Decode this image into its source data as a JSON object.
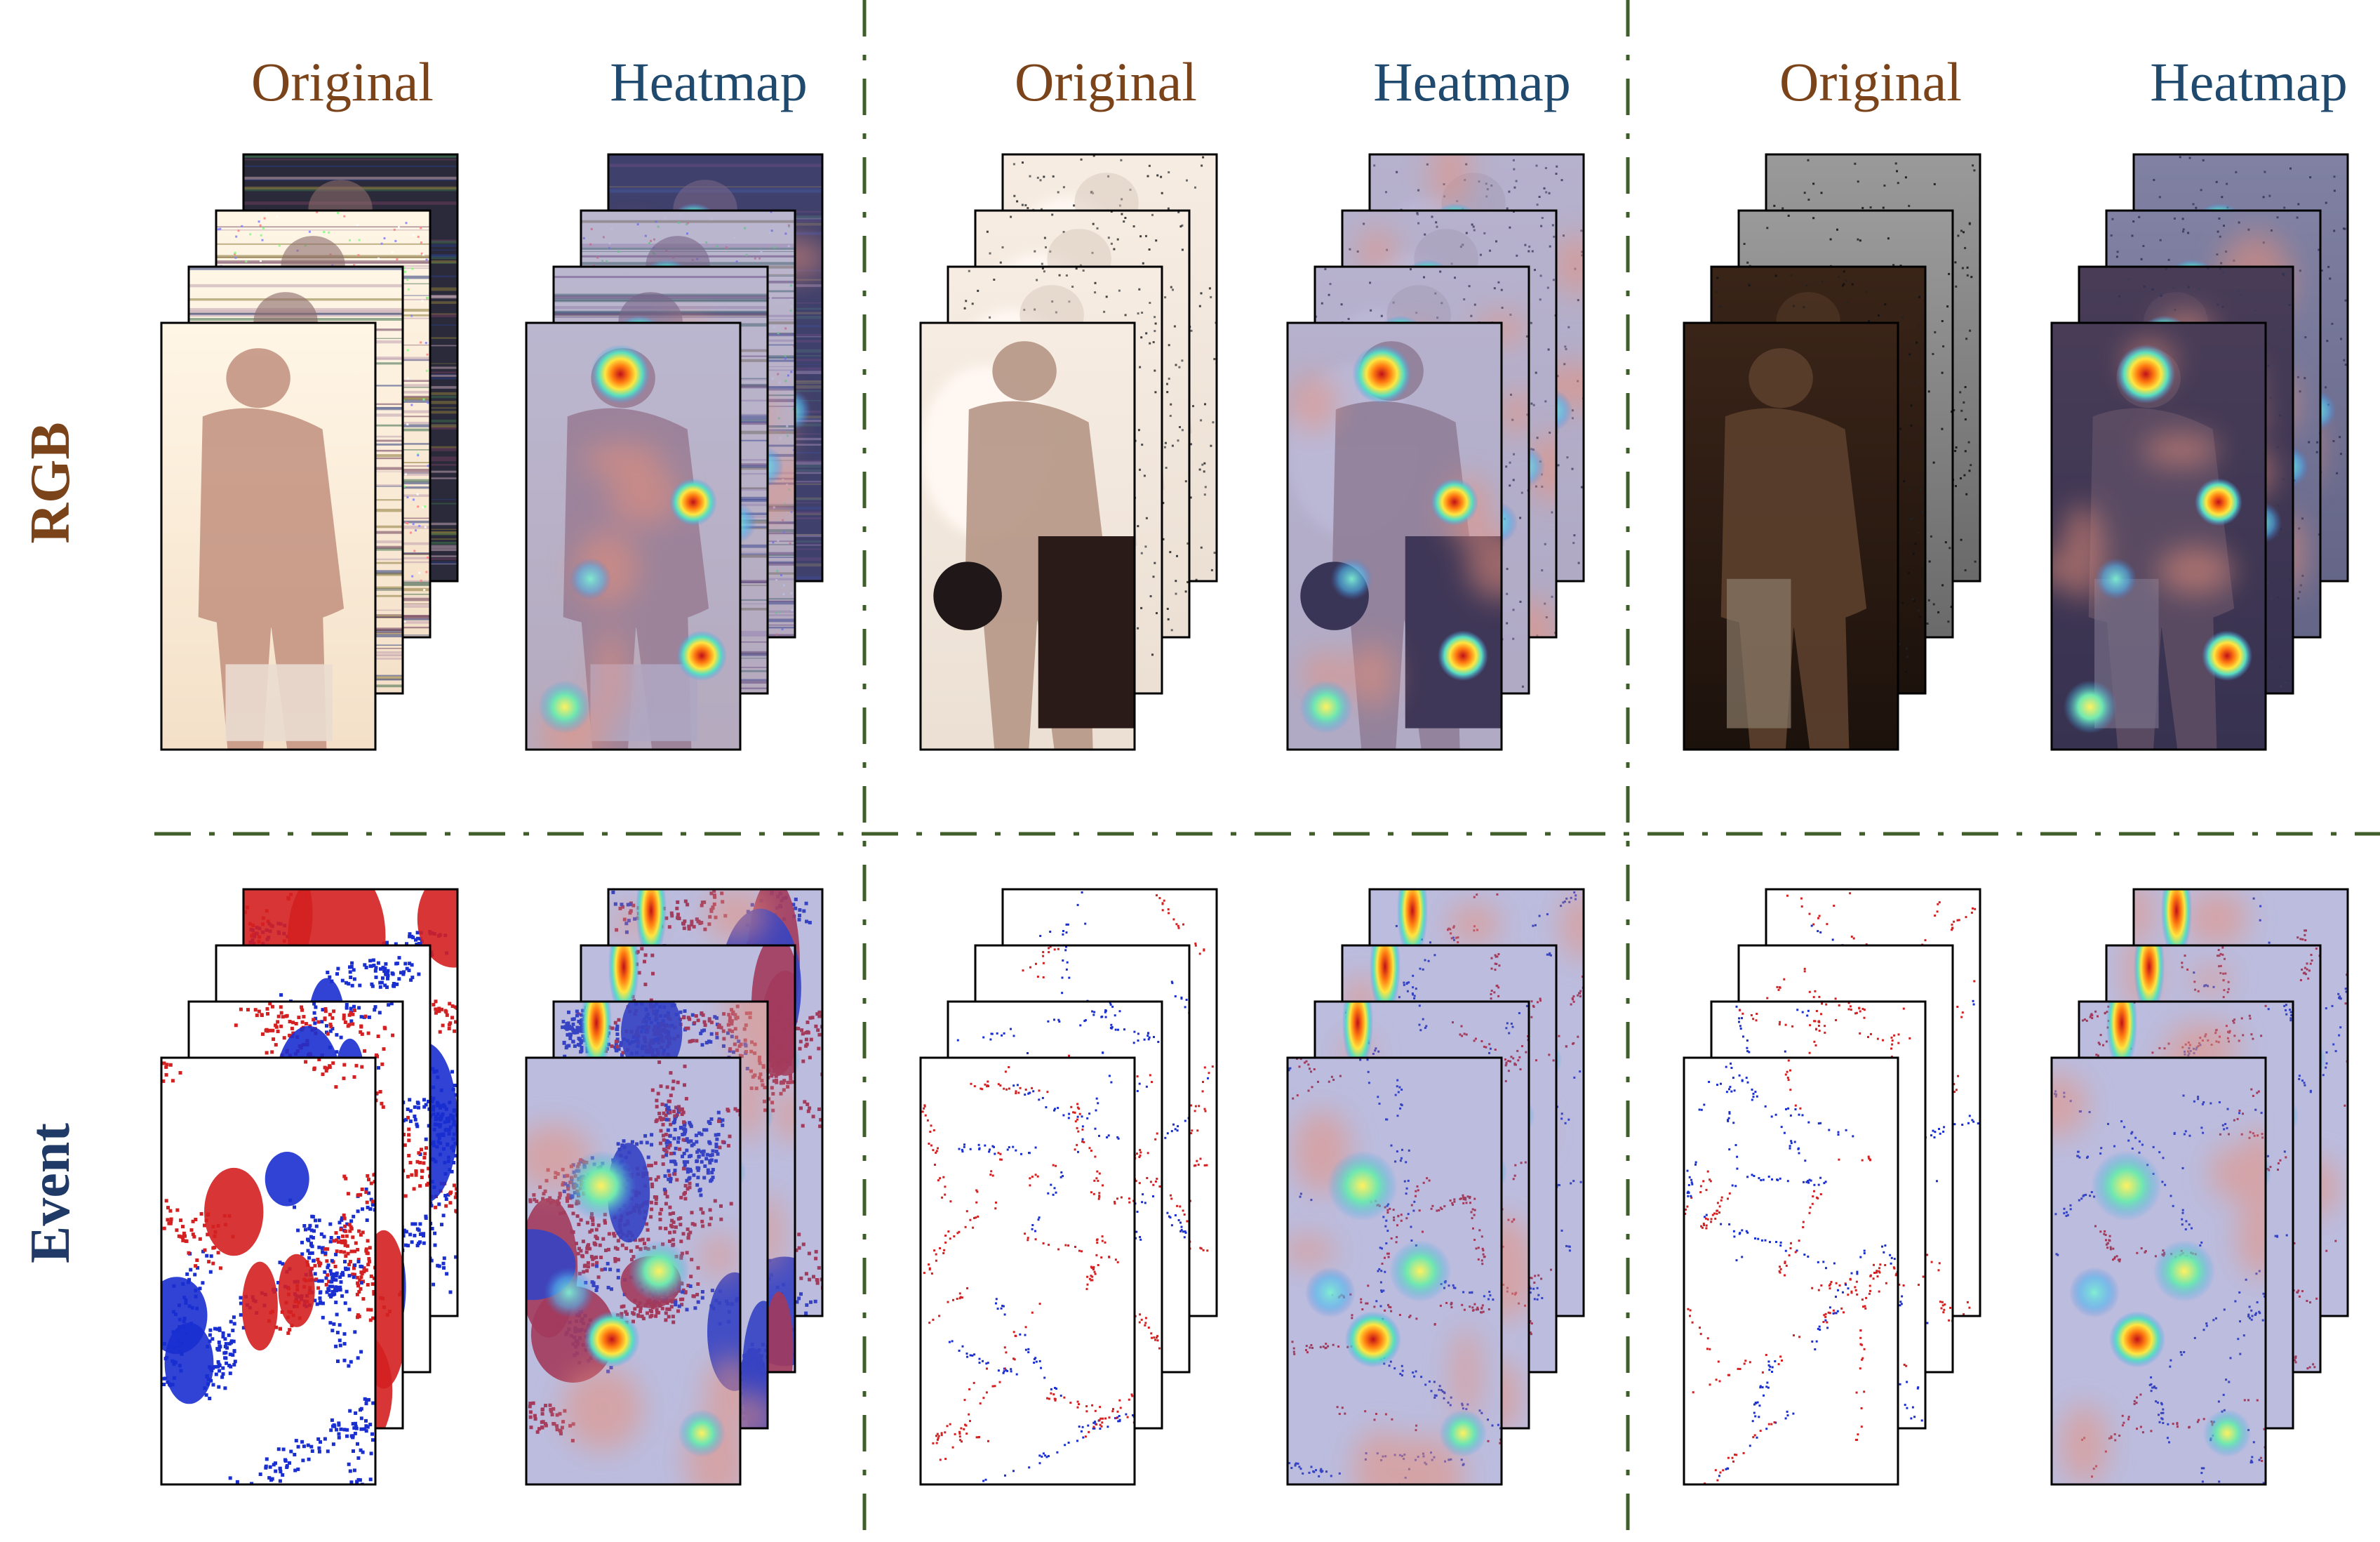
{
  "headers": {
    "original": "Original",
    "heatmap": "Heatmap"
  },
  "row_labels": {
    "rgb": "RGB",
    "event": "Event"
  },
  "colors": {
    "original_header": "#7b431a",
    "heatmap_header": "#1f4a6e",
    "rgb_label": "#7b431a",
    "event_label": "#1f3a66",
    "divider": "#3f5e2a",
    "event_pos": "#d42020",
    "event_neg": "#1a2fd0",
    "heatmap_tint": "#5d5fb0"
  },
  "samples": [
    {
      "rgb_scene": "bright-indoor",
      "event_density": "dense"
    },
    {
      "rgb_scene": "overexposed",
      "event_density": "sparse"
    },
    {
      "rgb_scene": "low-light",
      "event_density": "sparse"
    }
  ]
}
